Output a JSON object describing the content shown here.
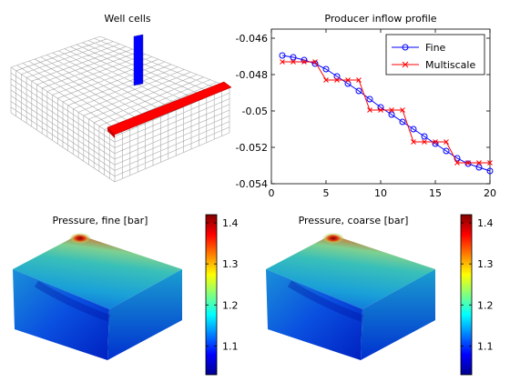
{
  "chart_data": [
    {
      "type": "3d-grid",
      "title": "Well cells",
      "colors": {
        "injector": "#0000ff",
        "producer": "#ff0000",
        "grid": "#a0a0a0"
      }
    },
    {
      "type": "line",
      "title": "Producer inflow profile",
      "xlabel": "",
      "ylabel": "",
      "xlim": [
        0,
        20
      ],
      "ylim": [
        -0.054,
        -0.0455
      ],
      "xticks": [
        0,
        5,
        10,
        15,
        20
      ],
      "yticks": [
        -0.046,
        -0.048,
        -0.05,
        -0.052,
        -0.054
      ],
      "ytick_labels": [
        "-0.046",
        "-0.048",
        "-0.05",
        "-0.052",
        "-0.054"
      ],
      "legend": "top-right",
      "x": [
        1,
        2,
        3,
        4,
        5,
        6,
        7,
        8,
        9,
        10,
        11,
        12,
        13,
        14,
        15,
        16,
        17,
        18,
        19,
        20
      ],
      "series": [
        {
          "name": "Fine",
          "color": "#0000ff",
          "marker": "circle",
          "values": [
            -0.04695,
            -0.04705,
            -0.0472,
            -0.0474,
            -0.0477,
            -0.0481,
            -0.0485,
            -0.0489,
            -0.04935,
            -0.0498,
            -0.0502,
            -0.0506,
            -0.051,
            -0.0514,
            -0.0518,
            -0.0522,
            -0.0526,
            -0.0529,
            -0.0531,
            -0.0533
          ]
        },
        {
          "name": "Multiscale",
          "color": "#ff0000",
          "marker": "x",
          "values": [
            -0.0473,
            -0.0473,
            -0.0473,
            -0.0473,
            -0.0483,
            -0.0483,
            -0.0483,
            -0.0483,
            -0.04995,
            -0.04995,
            -0.04995,
            -0.04995,
            -0.0517,
            -0.0517,
            -0.0517,
            -0.0517,
            -0.05285,
            -0.05285,
            -0.05285,
            -0.05285
          ]
        }
      ]
    },
    {
      "type": "heatmap",
      "title": "Pressure, fine [bar]",
      "colorbar_ticks": [
        1.4,
        1.3,
        1.2,
        1.1
      ],
      "clim": [
        1.03,
        1.42
      ]
    },
    {
      "type": "heatmap",
      "title": "Pressure, coarse [bar]",
      "colorbar_ticks": [
        1.4,
        1.3,
        1.2,
        1.1
      ],
      "clim": [
        1.03,
        1.42
      ]
    }
  ]
}
